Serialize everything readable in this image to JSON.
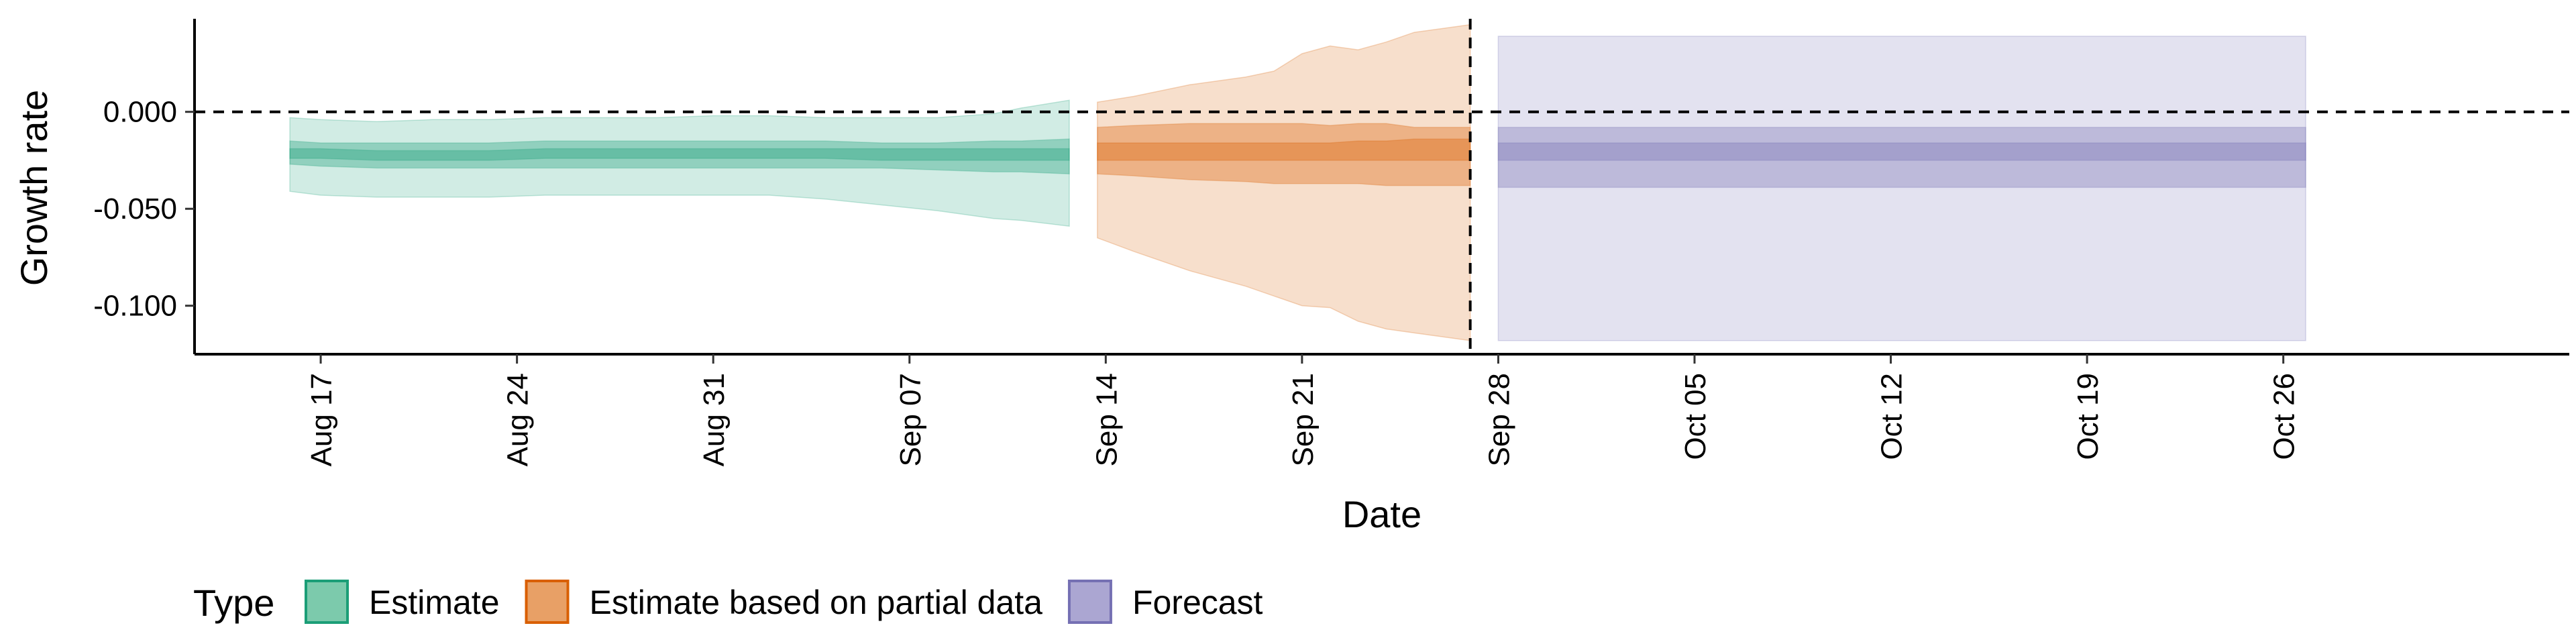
{
  "chart_data": {
    "type": "area",
    "title": "",
    "xlabel": "Date",
    "ylabel": "Growth rate",
    "xlim": [
      -3.5,
      81.2
    ],
    "ylim": [
      -0.125,
      0.048
    ],
    "y_ticks": [
      {
        "value": 0.0,
        "label": "0.000"
      },
      {
        "value": -0.05,
        "label": "-0.050"
      },
      {
        "value": -0.1,
        "label": "-0.100"
      }
    ],
    "x_ticks": [
      {
        "day": 1,
        "label": "Aug 17"
      },
      {
        "day": 8,
        "label": "Aug 24"
      },
      {
        "day": 15,
        "label": "Aug 31"
      },
      {
        "day": 22,
        "label": "Sep 07"
      },
      {
        "day": 29,
        "label": "Sep 14"
      },
      {
        "day": 36,
        "label": "Sep 21"
      },
      {
        "day": 43,
        "label": "Sep 28"
      },
      {
        "day": 50,
        "label": "Oct 05"
      },
      {
        "day": 57,
        "label": "Oct 12"
      },
      {
        "day": 64,
        "label": "Oct 19"
      },
      {
        "day": 71,
        "label": "Oct 26"
      }
    ],
    "reference_lines": {
      "horizontal_y": 0.0,
      "vertical_day": 42.0
    },
    "legend": {
      "title": "Type",
      "position": "bottom-left",
      "entries": [
        {
          "label": "Estimate",
          "fill": "#7ccaac",
          "stroke": "#1b9e77"
        },
        {
          "label": "Estimate based on partial data",
          "fill": "#e8a066",
          "stroke": "#d95f02"
        },
        {
          "label": "Forecast",
          "fill": "#aba6d2",
          "stroke": "#7570b3"
        }
      ]
    },
    "series": [
      {
        "name": "Estimate",
        "color": "#1b9e77",
        "x": [
          -0.1,
          1,
          3,
          5,
          7,
          9,
          11,
          13,
          15,
          17,
          19,
          21,
          23,
          25,
          26,
          27.7
        ],
        "ci90_upper": [
          -0.003,
          -0.004,
          -0.005,
          -0.004,
          -0.004,
          -0.003,
          -0.003,
          -0.003,
          -0.002,
          -0.002,
          -0.003,
          -0.003,
          -0.003,
          -0.001,
          0.002,
          0.006
        ],
        "ci90_lower": [
          -0.041,
          -0.043,
          -0.044,
          -0.044,
          -0.044,
          -0.043,
          -0.043,
          -0.043,
          -0.043,
          -0.043,
          -0.045,
          -0.048,
          -0.051,
          -0.055,
          -0.056,
          -0.059
        ],
        "ci50_upper": [
          -0.015,
          -0.016,
          -0.016,
          -0.016,
          -0.016,
          -0.015,
          -0.015,
          -0.015,
          -0.015,
          -0.015,
          -0.015,
          -0.016,
          -0.016,
          -0.015,
          -0.015,
          -0.014
        ],
        "ci50_lower": [
          -0.027,
          -0.028,
          -0.029,
          -0.029,
          -0.029,
          -0.029,
          -0.029,
          -0.029,
          -0.029,
          -0.029,
          -0.029,
          -0.029,
          -0.03,
          -0.031,
          -0.031,
          -0.032
        ],
        "ci20_upper": [
          -0.019,
          -0.019,
          -0.02,
          -0.02,
          -0.02,
          -0.019,
          -0.019,
          -0.019,
          -0.019,
          -0.019,
          -0.019,
          -0.019,
          -0.019,
          -0.019,
          -0.019,
          -0.019
        ],
        "ci20_lower": [
          -0.024,
          -0.024,
          -0.025,
          -0.025,
          -0.025,
          -0.024,
          -0.024,
          -0.024,
          -0.024,
          -0.024,
          -0.024,
          -0.025,
          -0.025,
          -0.025,
          -0.025,
          -0.025
        ]
      },
      {
        "name": "Estimate based on partial data",
        "color": "#d95f02",
        "x": [
          28.7,
          30,
          32,
          34,
          35,
          36,
          37,
          38,
          39,
          40,
          41,
          42.0
        ],
        "ci90_upper": [
          0.005,
          0.008,
          0.014,
          0.018,
          0.021,
          0.03,
          0.034,
          0.032,
          0.036,
          0.041,
          0.043,
          0.045
        ],
        "ci90_lower": [
          -0.065,
          -0.072,
          -0.082,
          -0.09,
          -0.095,
          -0.1,
          -0.101,
          -0.108,
          -0.112,
          -0.114,
          -0.116,
          -0.118
        ],
        "ci50_upper": [
          -0.008,
          -0.007,
          -0.006,
          -0.006,
          -0.006,
          -0.006,
          -0.007,
          -0.006,
          -0.006,
          -0.008,
          -0.008,
          -0.008
        ],
        "ci50_lower": [
          -0.032,
          -0.033,
          -0.035,
          -0.036,
          -0.037,
          -0.037,
          -0.037,
          -0.037,
          -0.038,
          -0.038,
          -0.038,
          -0.038
        ],
        "ci20_upper": [
          -0.016,
          -0.016,
          -0.016,
          -0.016,
          -0.016,
          -0.016,
          -0.016,
          -0.015,
          -0.015,
          -0.014,
          -0.014,
          -0.014
        ],
        "ci20_lower": [
          -0.025,
          -0.025,
          -0.025,
          -0.025,
          -0.025,
          -0.025,
          -0.025,
          -0.025,
          -0.025,
          -0.025,
          -0.025,
          -0.025
        ]
      },
      {
        "name": "Forecast",
        "color": "#7570b3",
        "x": [
          43.0,
          71.8
        ],
        "ci90_upper": [
          0.039,
          0.039
        ],
        "ci90_lower": [
          -0.118,
          -0.118
        ],
        "ci50_upper": [
          -0.008,
          -0.008
        ],
        "ci50_lower": [
          -0.039,
          -0.039
        ],
        "ci20_upper": [
          -0.016,
          -0.016
        ],
        "ci20_lower": [
          -0.025,
          -0.025
        ]
      }
    ]
  }
}
